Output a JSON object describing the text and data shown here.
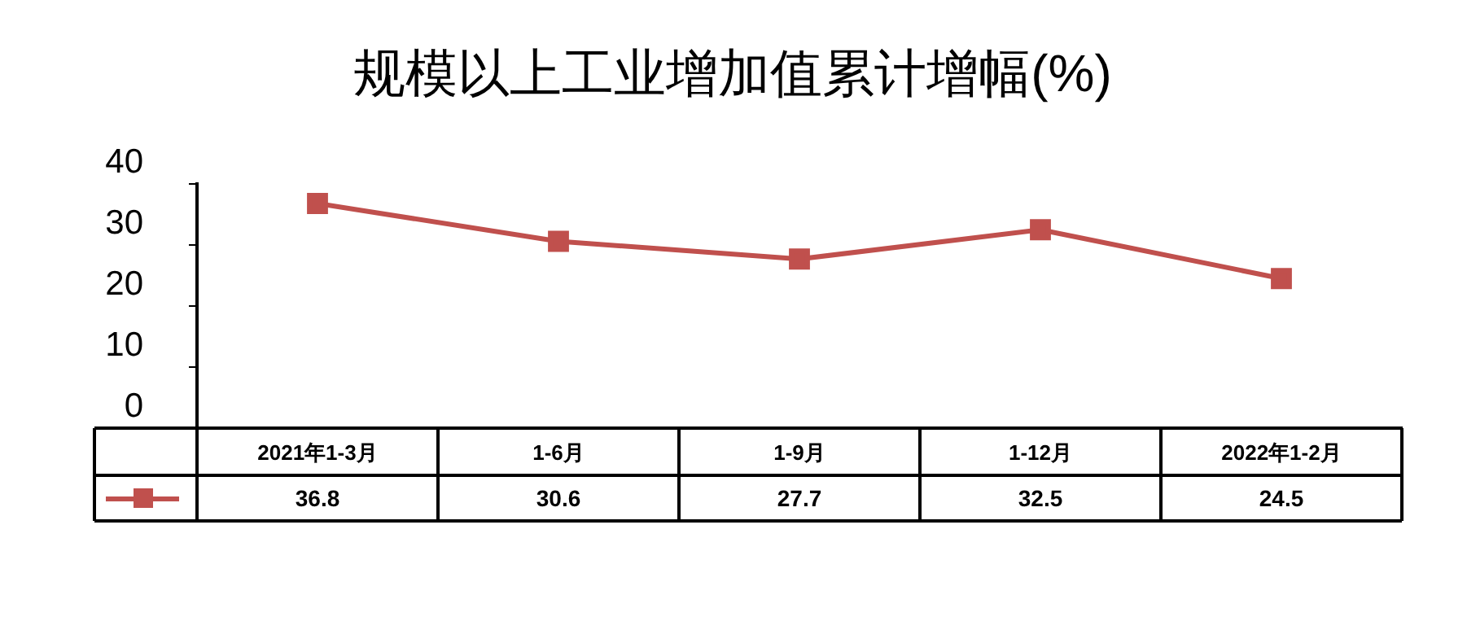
{
  "chart_data": {
    "type": "line",
    "title": "规模以上工业增加值累计增幅(%)",
    "categories": [
      "2021年1-3月",
      "1-6月",
      "1-9月",
      "1-12月",
      "2022年1-2月"
    ],
    "series": [
      {
        "color": "#c0504d",
        "values": [
          36.8,
          30.6,
          27.7,
          32.5,
          24.5
        ]
      }
    ],
    "ylim": [
      0,
      40
    ],
    "yticks": [
      0,
      10,
      20,
      30,
      40
    ],
    "grid": false,
    "legend": false,
    "marker": "square",
    "line_style": "solid",
    "data_labels": true
  }
}
